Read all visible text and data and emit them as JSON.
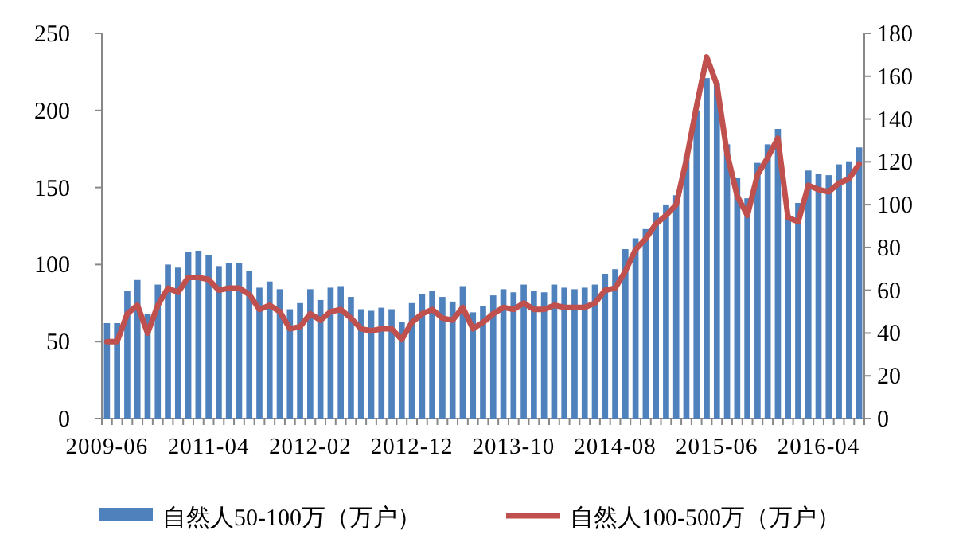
{
  "chart_data": {
    "type": "bar",
    "categories": [
      "2009-06",
      null,
      null,
      null,
      null,
      null,
      null,
      null,
      null,
      null,
      "2011-04",
      null,
      null,
      null,
      null,
      null,
      null,
      null,
      null,
      null,
      "2012-02",
      null,
      null,
      null,
      null,
      null,
      null,
      null,
      null,
      null,
      "2012-12",
      null,
      null,
      null,
      null,
      null,
      null,
      null,
      null,
      null,
      "2013-10",
      null,
      null,
      null,
      null,
      null,
      null,
      null,
      null,
      null,
      "2014-08",
      null,
      null,
      null,
      null,
      null,
      null,
      null,
      null,
      null,
      "2015-06",
      null,
      null,
      null,
      null,
      null,
      null,
      null,
      null,
      null,
      "2016-04",
      null,
      null,
      null,
      null
    ],
    "series": [
      {
        "name": "自然人50-100万（万户）",
        "color": "#4f81bd",
        "values": [
          62,
          62,
          83,
          90,
          68,
          87,
          100,
          98,
          108,
          109,
          106,
          99,
          101,
          101,
          96,
          85,
          89,
          84,
          71,
          75,
          84,
          77,
          85,
          86,
          79,
          71,
          70,
          72,
          71,
          63,
          75,
          81,
          83,
          79,
          76,
          86,
          69,
          73,
          80,
          84,
          82,
          87,
          83,
          82,
          87,
          85,
          84,
          85,
          87,
          94,
          97,
          110,
          117,
          123,
          134,
          139,
          145,
          170,
          200,
          221,
          218,
          178,
          156,
          143,
          166,
          178,
          188,
          132,
          140,
          161,
          159,
          158,
          165,
          167,
          176
        ]
      },
      {
        "name": "自然人100-500万（万户）",
        "color": "#c0504d",
        "type": "line",
        "axis": "y2",
        "values": [
          36,
          36,
          49,
          53,
          40,
          53,
          61,
          59,
          66,
          66,
          65,
          60,
          61,
          61,
          58,
          51,
          53,
          50,
          42,
          43,
          49,
          46,
          50,
          51,
          47,
          42,
          41,
          42,
          42,
          37,
          45,
          49,
          51,
          47,
          46,
          52,
          42,
          45,
          49,
          52,
          51,
          54,
          51,
          51,
          53,
          52,
          52,
          52,
          54,
          60,
          61,
          69,
          79,
          84,
          91,
          95,
          100,
          121,
          146,
          169,
          156,
          124,
          104,
          95,
          114,
          122,
          131,
          94,
          92,
          109,
          107,
          106,
          110,
          112,
          119
        ]
      }
    ],
    "ylim": [
      0,
      250
    ],
    "yticks": [
      0,
      50,
      100,
      150,
      200,
      250
    ],
    "y2lim": [
      0,
      180
    ],
    "y2ticks": [
      0,
      20,
      40,
      60,
      80,
      100,
      120,
      140,
      160,
      180
    ],
    "legend": "bottom"
  }
}
